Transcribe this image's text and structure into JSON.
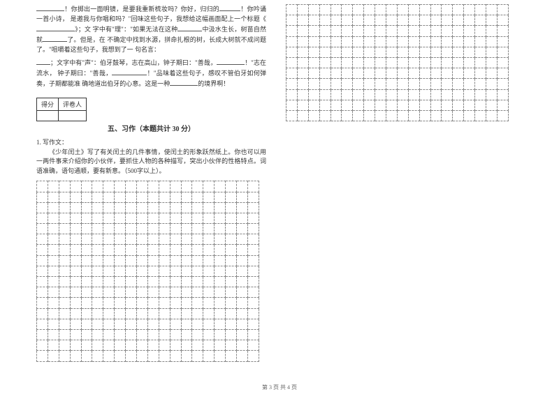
{
  "reading": {
    "line1a": "！你掷出一面明镜，是要我重新梳妆吗？你好，归归的",
    "line1b": "！你吟诵一首小诗，",
    "line2": "是邀我与你唱和吗？\"回味这些句子，我想给这幅画面配上一个标题《",
    "line2b": "》；文",
    "line3": "字中有\"理\"：\"如果无法在这种",
    "line3b": "中汲水生长，树苗自然就",
    "line3c": "了。但是，在",
    "line4": "不确定中找到水源，拼命扎根的树，长成大树就不成问题了。\"咀嚼着这些句子，我想到了一",
    "line5": "句名言：",
    "line6": "；文字中有\"声\"：伯牙鼓琴，志在高山，钟子期曰：\"善哉，",
    "line6b": "！\"志在流水，",
    "line7": "钟子期曰：\"善哉，",
    "line7b": "！\"品味着这些句子，感叹不管伯牙如何弹奏，子期都能准",
    "line8": "确地道出伯牙的心意。这是一种",
    "line8b": "的境界啊！"
  },
  "scoreHeaders": {
    "a": "得分",
    "b": "评卷人"
  },
  "section5": {
    "title": "五、习作（本题共计 30 分）",
    "q1": "1. 写作文：",
    "body": "《少年闰土》写了有关闰土的几件事情，使闰土的形象跃然纸上。你也可以用一两件事来介绍你的小伙伴，要抓住人物的各种描写，突出小伙伴的性格特点。词语准确，语句通顺，要有新意。（500字以上）。"
  },
  "footer": "第 3 页  共 4 页",
  "gridLeft": {
    "rows": 17,
    "cols": 20
  },
  "gridRight": {
    "rows": 11,
    "cols": 20
  }
}
